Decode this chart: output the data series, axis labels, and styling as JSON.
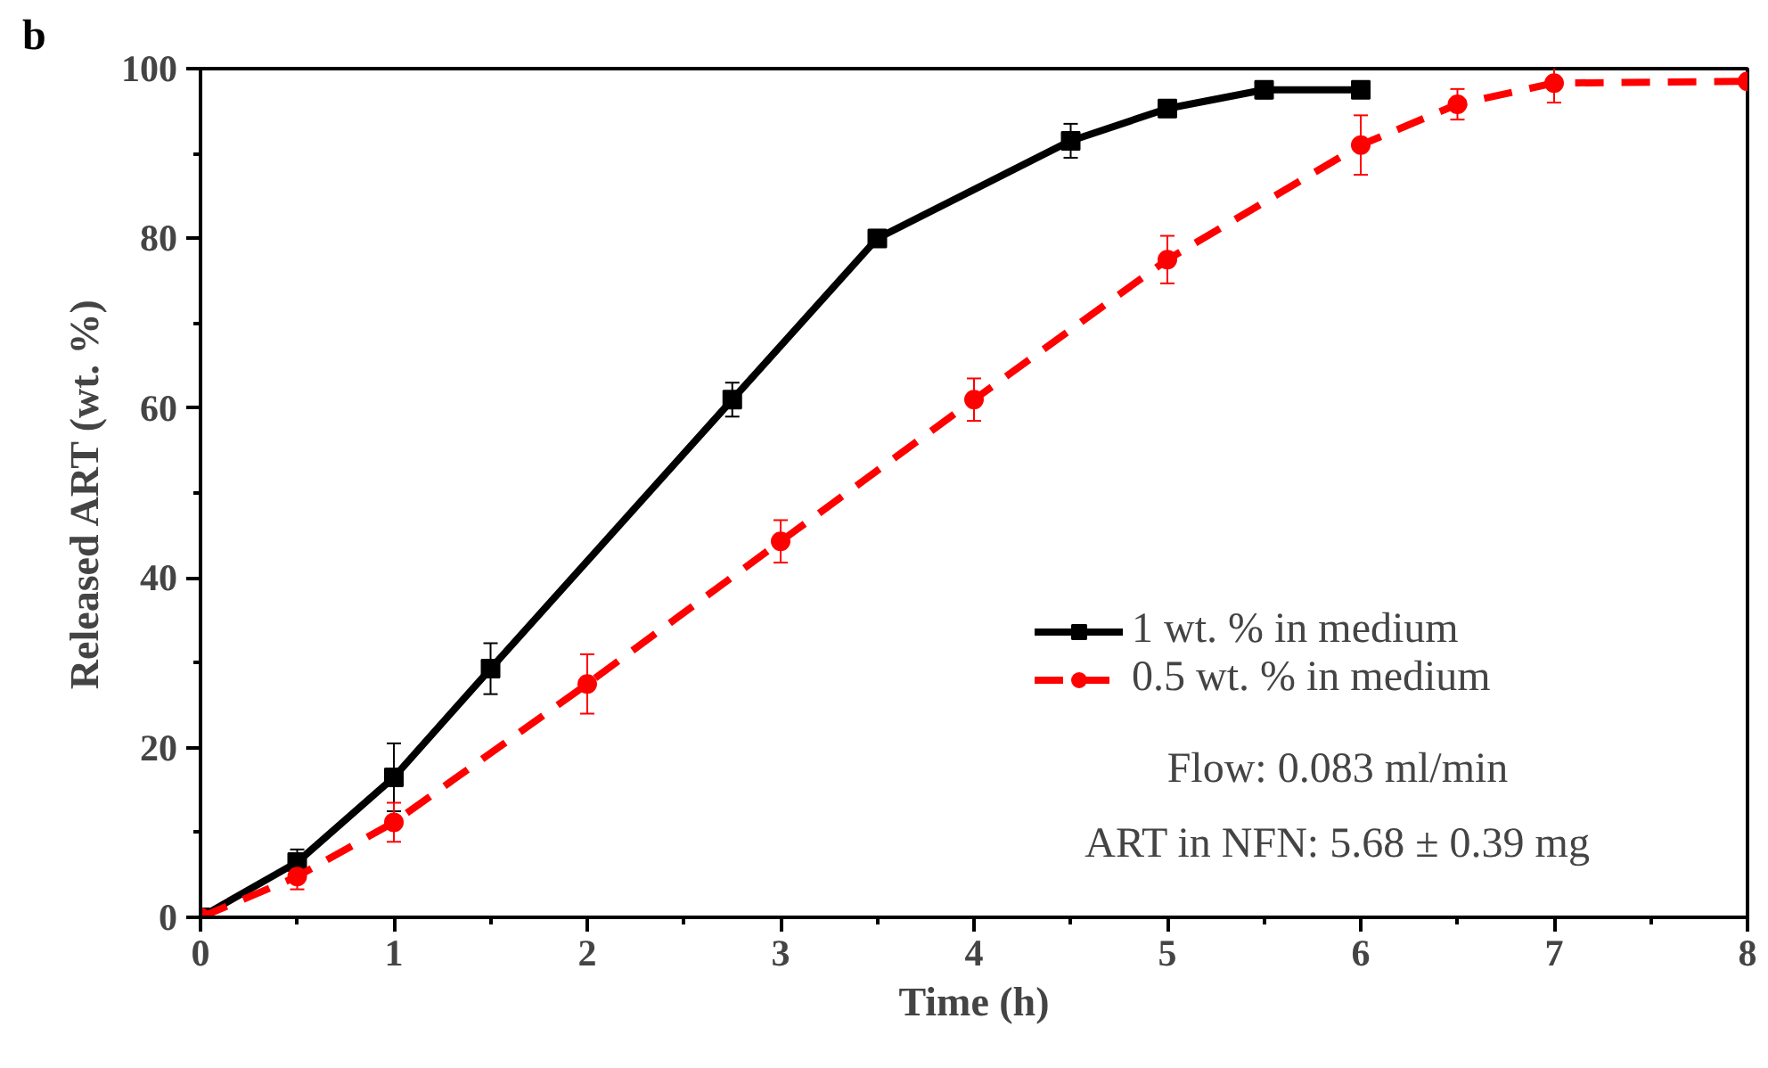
{
  "chart_data": {
    "type": "line",
    "xlabel": "Time (h)",
    "ylabel": "Released ART (wt. %)",
    "xlim": [
      0,
      8
    ],
    "ylim": [
      0,
      100
    ],
    "xticks": [
      0,
      1,
      2,
      3,
      4,
      5,
      6,
      7,
      8
    ],
    "yticks": [
      0,
      20,
      40,
      60,
      80,
      100
    ],
    "grid": false,
    "legend": "bottom right",
    "annotations": [
      "b",
      "Flow: 0.083 ml/min",
      "ART in NFN: 5.68 ± 0.39 mg"
    ],
    "series": [
      {
        "name": "1 wt. % in medium",
        "color": "#000000",
        "marker": "square",
        "line_style": "solid",
        "x": [
          0,
          0.5,
          1,
          1.5,
          2.75,
          3.5,
          4.5,
          5,
          5.5,
          6
        ],
        "values": [
          0,
          6.5,
          16.5,
          29.3,
          61,
          80,
          91.5,
          95.3,
          97.5,
          97.5
        ],
        "errors": [
          null,
          1.5,
          4,
          3,
          2,
          1,
          2,
          1,
          1,
          null
        ]
      },
      {
        "name": "0.5 wt. % in medium",
        "color": "#ff0000",
        "marker": "circle",
        "line_style": "dashed",
        "x": [
          0,
          0.5,
          1,
          2,
          3,
          4,
          5,
          6,
          6.5,
          7,
          8
        ],
        "values": [
          0,
          4.8,
          11.2,
          27.5,
          44.3,
          61,
          77.5,
          91,
          95.8,
          98.3,
          98.5
        ],
        "errors": [
          null,
          1.5,
          2.3,
          3.5,
          2.5,
          2.5,
          2.8,
          3.5,
          1.8,
          2.3,
          null
        ]
      }
    ]
  }
}
